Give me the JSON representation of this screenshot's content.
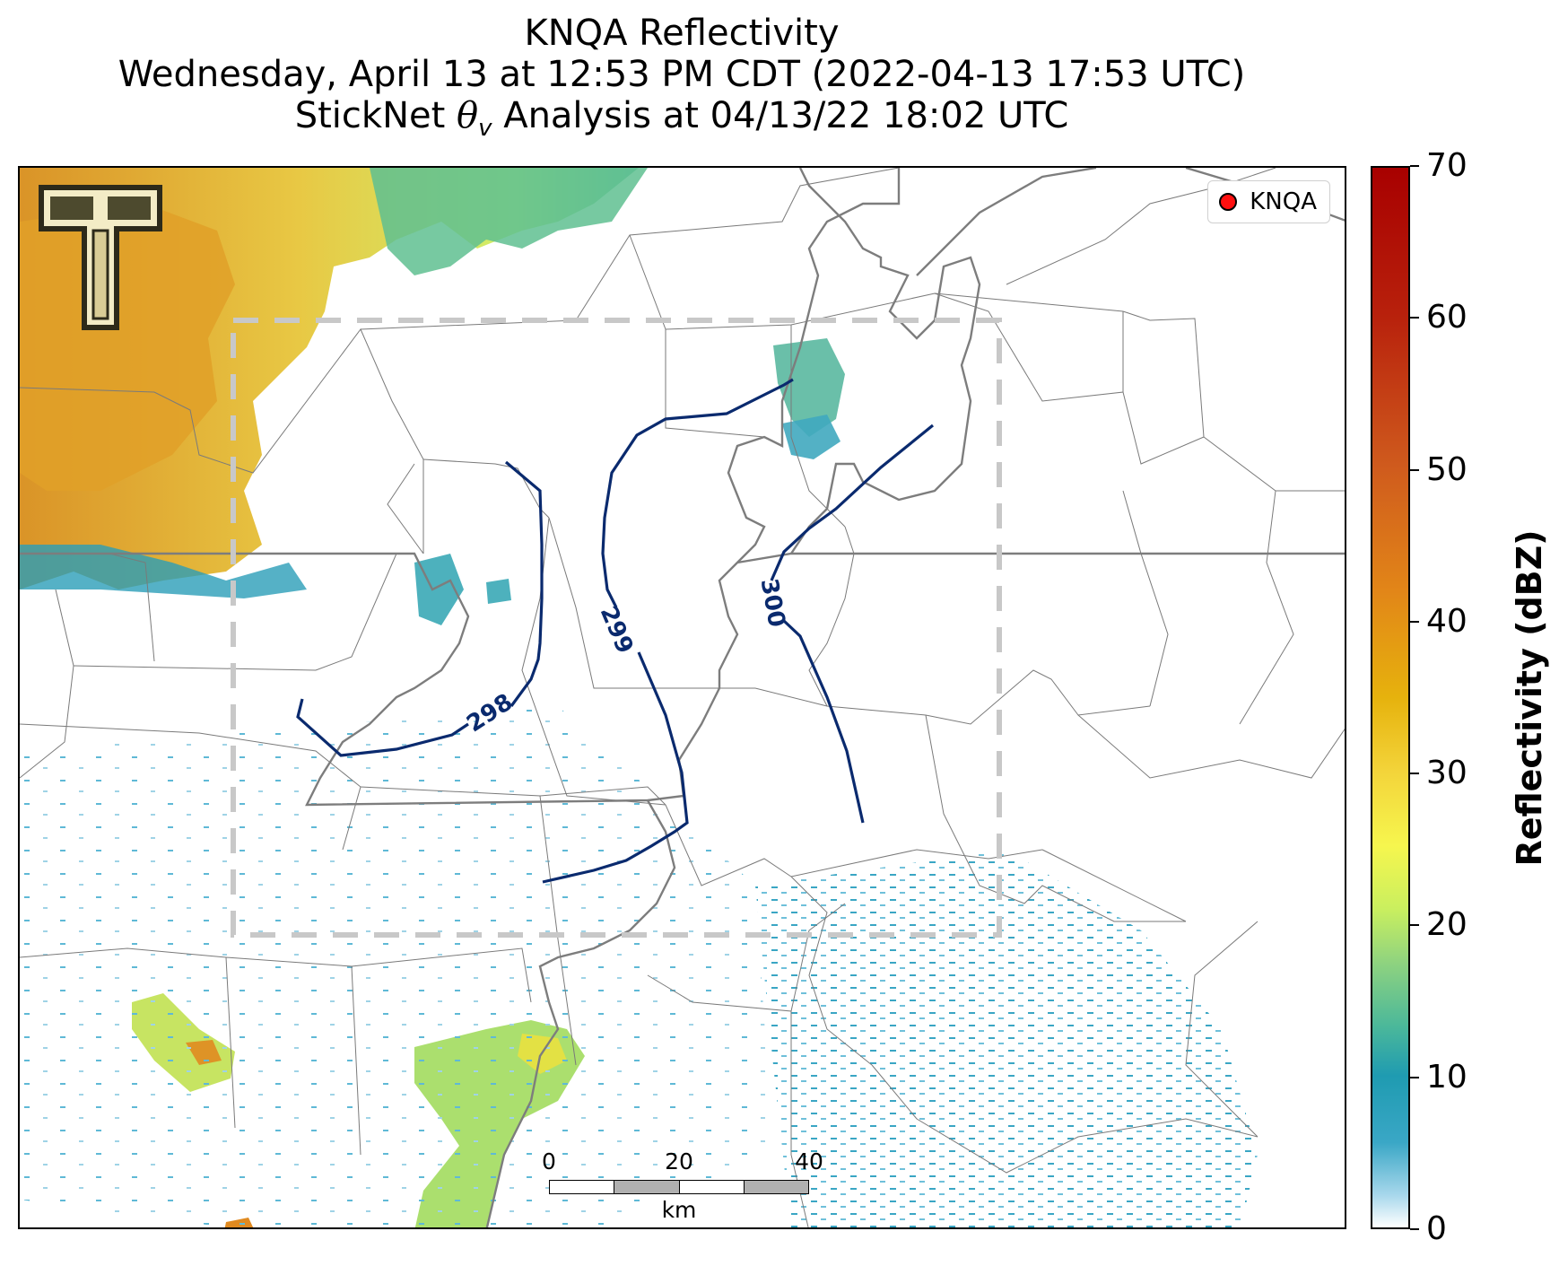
{
  "title": {
    "line1": "KNQA Reflectivity",
    "line2": "Wednesday, April 13 at 12:53 PM CDT (2022-04-13 17:53 UTC)",
    "line3_prefix": "StickNet ",
    "line3_symbol": "θ",
    "line3_subscript": "v",
    "line3_suffix": " Analysis at 04/13/22 18:02 UTC"
  },
  "legend": {
    "label": "KNQA",
    "marker_color": "#ff1010"
  },
  "contours": [
    {
      "label": "298",
      "color": "#0a2a6e"
    },
    {
      "label": "299",
      "color": "#0a2a6e"
    },
    {
      "label": "300",
      "color": "#0a2a6e"
    }
  ],
  "scalebar": {
    "ticks": [
      "0",
      "20",
      "40"
    ],
    "unit": "km"
  },
  "colorbar": {
    "title": "Reflectivity (dBZ)",
    "ticks": [
      "70",
      "60",
      "50",
      "40",
      "30",
      "20",
      "10",
      "0"
    ],
    "min": 0,
    "max": 70
  },
  "analysis_box": {
    "style": "dashed",
    "color": "#c8c8c8"
  },
  "logo": {
    "icon": "texas-tech-double-t-icon"
  }
}
